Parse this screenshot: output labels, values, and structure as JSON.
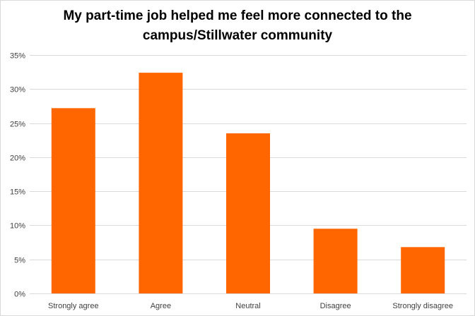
{
  "chart_data": {
    "type": "bar",
    "title_line1": "My part-time  job helped me feel more connected to the",
    "title_line2": "campus/Stillwater  community",
    "categories": [
      "Strongly agree",
      "Agree",
      "Neutral",
      "Disagree",
      "Strongly disagree"
    ],
    "values": [
      27.2,
      32.4,
      23.5,
      9.5,
      6.8
    ],
    "y_ticks": [
      "0%",
      "5%",
      "10%",
      "15%",
      "20%",
      "25%",
      "30%",
      "35%"
    ],
    "ylim": [
      0,
      35
    ],
    "y_unit": "%",
    "grid": true,
    "bar_color": "#ff6600",
    "grid_color": "#d9d9d9"
  }
}
